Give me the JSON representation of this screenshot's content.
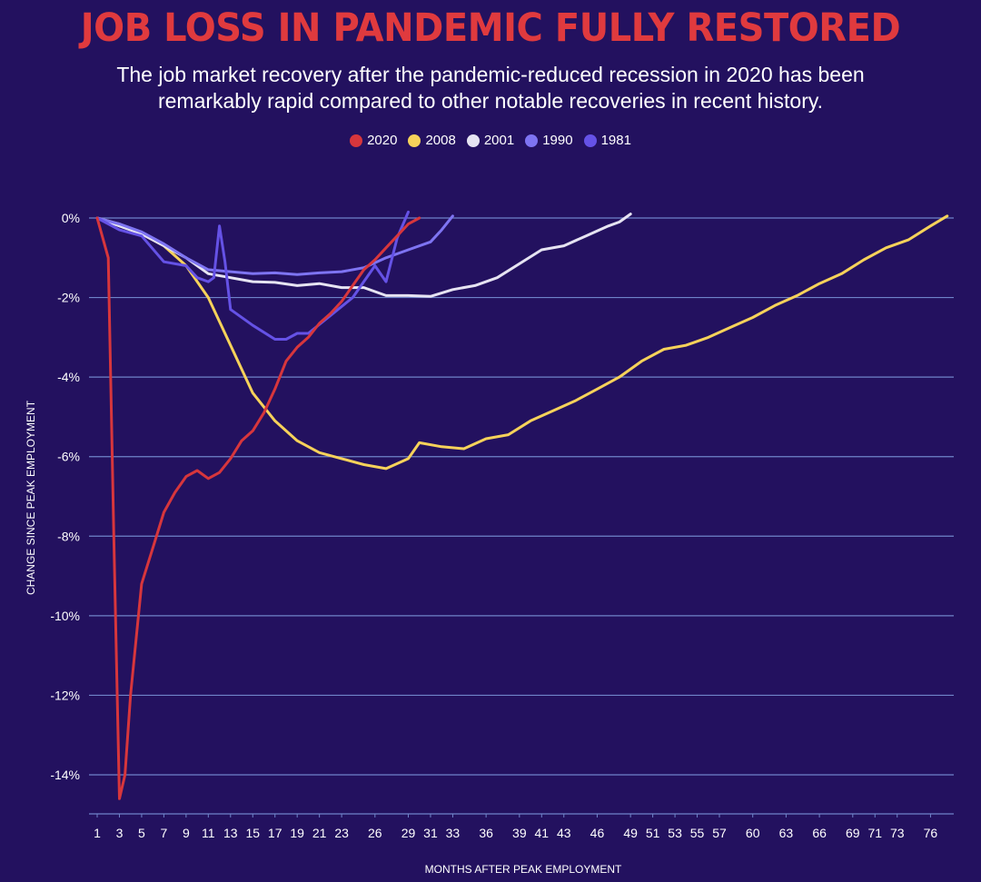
{
  "chart_data": {
    "type": "line",
    "title": "JOB LOSS IN PANDEMIC FULLY RESTORED",
    "subtitle": "The job market recovery after the pandemic-reduced recession in 2020 has been remarkably rapid compared to other notable recoveries in recent history.",
    "xlabel": "MONTHS AFTER PEAK EMPLOYMENT",
    "ylabel": "CHANGE SINCE PEAK EMPLOYMENT",
    "xlim": [
      1,
      78
    ],
    "ylim": [
      -15,
      0.3
    ],
    "grid": true,
    "legend_position": "top-center",
    "x_ticks": [
      1,
      3,
      5,
      7,
      9,
      11,
      13,
      15,
      17,
      19,
      21,
      23,
      26,
      29,
      31,
      33,
      36,
      39,
      41,
      43,
      46,
      49,
      51,
      53,
      55,
      57,
      60,
      63,
      66,
      69,
      71,
      73,
      76
    ],
    "y_ticks": [
      0,
      -2,
      -4,
      -6,
      -8,
      -10,
      -12,
      -14
    ],
    "y_tick_labels": [
      "0%",
      "-2%",
      "-4%",
      "-6%",
      "-8%",
      "-10%",
      "-12%",
      "-14%"
    ],
    "series": [
      {
        "name": "2020",
        "color": "#d7363c",
        "points": [
          [
            1,
            0
          ],
          [
            2,
            -1.0
          ],
          [
            2.5,
            -8.0
          ],
          [
            3,
            -14.6
          ],
          [
            3.5,
            -14.0
          ],
          [
            4,
            -12.0
          ],
          [
            5,
            -9.2
          ],
          [
            6,
            -8.3
          ],
          [
            7,
            -7.4
          ],
          [
            8,
            -6.9
          ],
          [
            9,
            -6.5
          ],
          [
            10,
            -6.35
          ],
          [
            11,
            -6.55
          ],
          [
            12,
            -6.4
          ],
          [
            13,
            -6.05
          ],
          [
            14,
            -5.6
          ],
          [
            15,
            -5.35
          ],
          [
            16,
            -4.9
          ],
          [
            17,
            -4.3
          ],
          [
            18,
            -3.6
          ],
          [
            19,
            -3.25
          ],
          [
            20,
            -3.0
          ],
          [
            21,
            -2.65
          ],
          [
            22,
            -2.4
          ],
          [
            23,
            -2.1
          ],
          [
            24,
            -1.7
          ],
          [
            25,
            -1.3
          ],
          [
            26,
            -1.05
          ],
          [
            27,
            -0.75
          ],
          [
            28,
            -0.45
          ],
          [
            29,
            -0.15
          ],
          [
            30,
            0.0
          ]
        ]
      },
      {
        "name": "2008",
        "color": "#f6d25a",
        "points": [
          [
            1,
            0
          ],
          [
            3,
            -0.15
          ],
          [
            5,
            -0.4
          ],
          [
            7,
            -0.7
          ],
          [
            9,
            -1.2
          ],
          [
            11,
            -2.0
          ],
          [
            13,
            -3.2
          ],
          [
            15,
            -4.4
          ],
          [
            17,
            -5.1
          ],
          [
            19,
            -5.6
          ],
          [
            21,
            -5.9
          ],
          [
            23,
            -6.05
          ],
          [
            25,
            -6.2
          ],
          [
            27,
            -6.3
          ],
          [
            29,
            -6.05
          ],
          [
            30,
            -5.65
          ],
          [
            32,
            -5.75
          ],
          [
            34,
            -5.8
          ],
          [
            36,
            -5.55
          ],
          [
            38,
            -5.45
          ],
          [
            40,
            -5.1
          ],
          [
            42,
            -4.85
          ],
          [
            44,
            -4.6
          ],
          [
            46,
            -4.3
          ],
          [
            48,
            -4.0
          ],
          [
            50,
            -3.6
          ],
          [
            52,
            -3.3
          ],
          [
            54,
            -3.2
          ],
          [
            56,
            -3.0
          ],
          [
            58,
            -2.75
          ],
          [
            60,
            -2.5
          ],
          [
            62,
            -2.2
          ],
          [
            64,
            -1.95
          ],
          [
            66,
            -1.65
          ],
          [
            68,
            -1.4
          ],
          [
            70,
            -1.05
          ],
          [
            72,
            -0.75
          ],
          [
            74,
            -0.55
          ],
          [
            76,
            -0.2
          ],
          [
            77.5,
            0.05
          ]
        ]
      },
      {
        "name": "2001",
        "color": "#e6e4f2",
        "points": [
          [
            1,
            0
          ],
          [
            3,
            -0.2
          ],
          [
            5,
            -0.4
          ],
          [
            7,
            -0.7
          ],
          [
            9,
            -1.0
          ],
          [
            11,
            -1.4
          ],
          [
            13,
            -1.5
          ],
          [
            15,
            -1.6
          ],
          [
            17,
            -1.62
          ],
          [
            19,
            -1.7
          ],
          [
            21,
            -1.65
          ],
          [
            23,
            -1.75
          ],
          [
            25,
            -1.75
          ],
          [
            27,
            -1.95
          ],
          [
            29,
            -1.95
          ],
          [
            31,
            -1.97
          ],
          [
            33,
            -1.8
          ],
          [
            35,
            -1.7
          ],
          [
            37,
            -1.5
          ],
          [
            39,
            -1.15
          ],
          [
            41,
            -0.8
          ],
          [
            43,
            -0.7
          ],
          [
            45,
            -0.45
          ],
          [
            47,
            -0.2
          ],
          [
            48,
            -0.1
          ],
          [
            49,
            0.1
          ]
        ]
      },
      {
        "name": "1990",
        "color": "#7e74f2",
        "points": [
          [
            1,
            0
          ],
          [
            3,
            -0.15
          ],
          [
            5,
            -0.35
          ],
          [
            7,
            -0.65
          ],
          [
            9,
            -1.0
          ],
          [
            11,
            -1.3
          ],
          [
            13,
            -1.35
          ],
          [
            15,
            -1.4
          ],
          [
            17,
            -1.38
          ],
          [
            19,
            -1.42
          ],
          [
            21,
            -1.38
          ],
          [
            23,
            -1.35
          ],
          [
            25,
            -1.25
          ],
          [
            27,
            -1.0
          ],
          [
            29,
            -0.8
          ],
          [
            31,
            -0.6
          ],
          [
            32,
            -0.3
          ],
          [
            33,
            0.05
          ]
        ]
      },
      {
        "name": "1981",
        "color": "#6552e6",
        "points": [
          [
            1,
            0
          ],
          [
            3,
            -0.3
          ],
          [
            5,
            -0.45
          ],
          [
            7,
            -1.1
          ],
          [
            9,
            -1.2
          ],
          [
            10,
            -1.5
          ],
          [
            11,
            -1.6
          ],
          [
            11.5,
            -1.5
          ],
          [
            12,
            -0.2
          ],
          [
            12.5,
            -1.1
          ],
          [
            13,
            -2.3
          ],
          [
            15,
            -2.7
          ],
          [
            17,
            -3.05
          ],
          [
            18,
            -3.05
          ],
          [
            19,
            -2.9
          ],
          [
            20,
            -2.9
          ],
          [
            22,
            -2.45
          ],
          [
            24,
            -2.0
          ],
          [
            26,
            -1.2
          ],
          [
            27,
            -1.6
          ],
          [
            28,
            -0.5
          ],
          [
            29,
            0.15
          ]
        ]
      }
    ]
  }
}
